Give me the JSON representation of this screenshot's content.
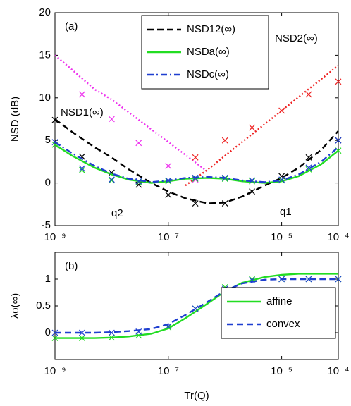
{
  "chart_data": [
    {
      "type": "line",
      "panel_label": "(a)",
      "ylabel": "NSD (dB)",
      "xscale": "log",
      "xlim": [
        1e-09,
        0.0001
      ],
      "xticks": [
        {
          "value": 1e-09,
          "label": "10⁻⁹"
        },
        {
          "value": 1e-07,
          "label": "10⁻⁷"
        },
        {
          "value": 1e-05,
          "label": "10⁻⁵"
        },
        {
          "value": 0.0001,
          "label": "10⁻⁴"
        }
      ],
      "ylim": [
        -5,
        20
      ],
      "yticks": [
        -5,
        0,
        5,
        10,
        15,
        20
      ],
      "legend": "upper center",
      "x": [
        1e-09,
        2e-09,
        5e-09,
        1e-08,
        2e-08,
        5e-08,
        1e-07,
        2e-07,
        5e-07,
        1e-06,
        2e-06,
        5e-06,
        1e-05,
        2e-05,
        5e-05,
        0.0001
      ],
      "marker_x": [
        1e-09,
        3e-09,
        1e-08,
        3e-08,
        1e-07,
        3e-07,
        1e-06,
        3e-06,
        1e-05,
        3e-05,
        0.0001
      ],
      "series": [
        {
          "name": "NSD12(∞)",
          "color": "#000000",
          "style": "dashed",
          "values": [
            7.5,
            6.0,
            4.2,
            3.0,
            1.6,
            0.0,
            -1.0,
            -1.8,
            -2.4,
            -2.3,
            -1.6,
            -0.3,
            0.6,
            1.8,
            3.9,
            6.1
          ],
          "marker_values": [
            7.4,
            3.1,
            1.2,
            -0.2,
            -1.4,
            -2.4,
            -2.4,
            -1.0,
            0.8,
            3.0,
            5.0
          ]
        },
        {
          "name": "NSDa(∞)",
          "color": "#22dd22",
          "style": "solid",
          "values": [
            4.5,
            3.2,
            1.8,
            1.0,
            0.4,
            0.0,
            0.2,
            0.5,
            0.6,
            0.5,
            0.2,
            0.0,
            0.2,
            0.8,
            2.2,
            3.8
          ],
          "marker_values": [
            4.5,
            1.5,
            0.3,
            0.1,
            0.2,
            0.5,
            0.5,
            0.2,
            0.3,
            1.6,
            3.8
          ]
        },
        {
          "name": "NSDc(∞)",
          "color": "#1f3fd0",
          "style": "dashdot",
          "values": [
            4.8,
            3.5,
            2.0,
            1.1,
            0.5,
            0.1,
            0.3,
            0.6,
            0.7,
            0.6,
            0.3,
            0.1,
            0.3,
            1.0,
            2.5,
            4.2
          ],
          "marker_values": [
            4.8,
            1.7,
            0.4,
            0.2,
            0.3,
            0.6,
            0.6,
            0.3,
            0.4,
            1.8,
            5.0
          ]
        }
      ],
      "annotated_series": [
        {
          "name": "NSD1(∞)",
          "color": "#ee33ee",
          "style": "dotted",
          "values": [
            15.0,
            13.3,
            11.0,
            9.8,
            8.3,
            6.3,
            4.8,
            3.3,
            1.3,
            null,
            null,
            null,
            null,
            null,
            null,
            null
          ],
          "marker_values": [
            null,
            10.4,
            7.5,
            4.7,
            2.0,
            0.4,
            null,
            null,
            null,
            null,
            null
          ]
        },
        {
          "name": "NSD2(∞)",
          "color": "#ee2222",
          "style": "dotted",
          "values": [
            null,
            null,
            null,
            null,
            null,
            null,
            null,
            -0.3,
            1.6,
            3.2,
            4.8,
            6.9,
            8.5,
            10.1,
            12.2,
            13.8
          ],
          "marker_values": [
            null,
            null,
            null,
            null,
            null,
            3.0,
            5.0,
            6.5,
            8.5,
            10.4,
            11.9
          ]
        }
      ],
      "annotations": [
        "q2",
        "q1"
      ]
    },
    {
      "type": "line",
      "panel_label": "(b)",
      "ylabel": "λo(∞)",
      "xlabel": "Tr(Q)",
      "xscale": "log",
      "xlim": [
        1e-09,
        0.0001
      ],
      "xticks": [
        {
          "value": 1e-09,
          "label": "10⁻⁹"
        },
        {
          "value": 1e-07,
          "label": "10⁻⁷"
        },
        {
          "value": 1e-05,
          "label": "10⁻⁵"
        },
        {
          "value": 0.0001,
          "label": "10⁻⁴"
        }
      ],
      "ylim": [
        -0.5,
        1.5
      ],
      "yticks": [
        0,
        0.5,
        1
      ],
      "legend": "lower right",
      "x": [
        1e-09,
        2e-09,
        5e-09,
        1e-08,
        2e-08,
        5e-08,
        1e-07,
        2e-07,
        5e-07,
        1e-06,
        2e-06,
        5e-06,
        1e-05,
        2e-05,
        5e-05,
        0.0001
      ],
      "marker_x": [
        1e-09,
        3e-09,
        1e-08,
        3e-08,
        1e-07,
        3e-07,
        1e-06,
        3e-06,
        1e-05,
        3e-05,
        0.0001
      ],
      "series": [
        {
          "name": "affine",
          "color": "#22dd22",
          "style": "solid",
          "values": [
            -0.1,
            -0.1,
            -0.1,
            -0.09,
            -0.07,
            -0.02,
            0.08,
            0.27,
            0.55,
            0.77,
            0.93,
            1.04,
            1.08,
            1.1,
            1.1,
            1.1
          ],
          "marker_values": [
            -0.1,
            -0.1,
            -0.09,
            -0.05,
            0.1,
            0.45,
            0.85,
            1.0,
            1.0,
            1.0,
            1.0
          ]
        },
        {
          "name": "convex",
          "color": "#1f3fd0",
          "style": "dashed",
          "values": [
            0,
            0,
            0,
            0.01,
            0.03,
            0.07,
            0.16,
            0.33,
            0.58,
            0.78,
            0.92,
            0.99,
            1.0,
            1.0,
            1.0,
            1.0
          ],
          "marker_values": [
            0,
            0,
            0,
            0.02,
            0.12,
            0.45,
            0.82,
            0.98,
            1.0,
            1.0,
            1.0
          ]
        }
      ]
    }
  ]
}
